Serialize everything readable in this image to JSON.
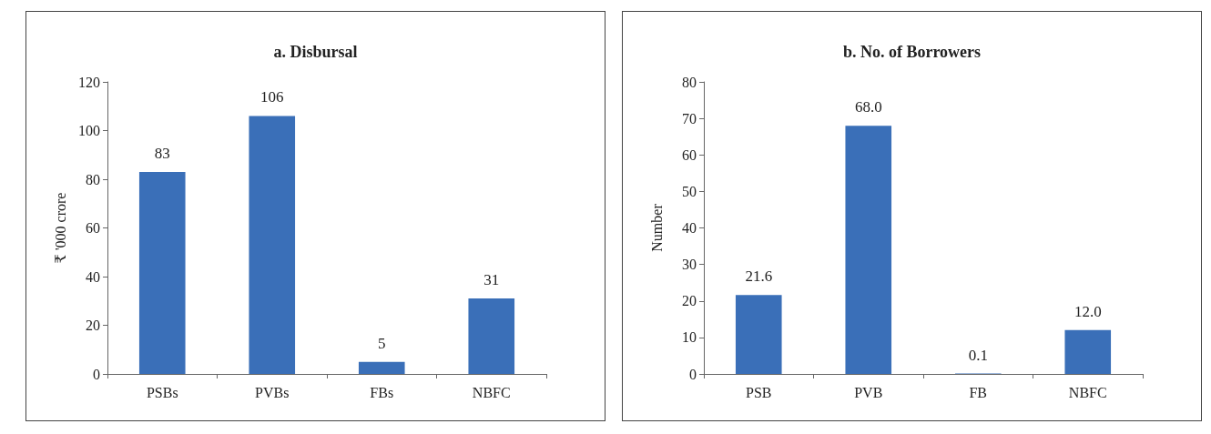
{
  "chart_data": [
    {
      "type": "bar",
      "title": "a. Disbursal",
      "ylabel": "₹ '000 crore",
      "categories": [
        "PSBs",
        "PVBs",
        "FBs",
        "NBFC"
      ],
      "values": [
        83,
        106,
        5,
        31
      ],
      "color": "#3a6fb8",
      "ylim": [
        0,
        120
      ],
      "yticks": [
        0,
        20,
        40,
        60,
        80,
        100,
        120
      ],
      "grid": false,
      "data_labels": true
    },
    {
      "type": "bar",
      "title": "b. No. of Borrowers",
      "ylabel": "Number",
      "categories": [
        "PSB",
        "PVB",
        "FB",
        "NBFC"
      ],
      "values": [
        21.6,
        68,
        0.1,
        12
      ],
      "value_labels": [
        "21.6",
        "68.0",
        "0.1",
        "12.0"
      ],
      "color": "#3a6fb8",
      "ylim": [
        0,
        80
      ],
      "yticks": [
        0,
        10,
        20,
        30,
        40,
        50,
        60,
        70,
        80
      ],
      "grid": false
    }
  ]
}
